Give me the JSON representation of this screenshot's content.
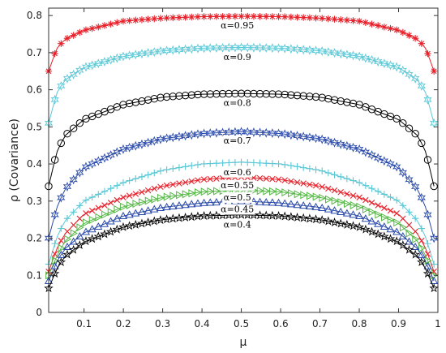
{
  "chart_data": {
    "type": "scatter",
    "title": "",
    "xlabel": "μ",
    "ylabel": "ρ  (Covariance)",
    "xlim": [
      0.01,
      1.0
    ],
    "ylim": [
      0,
      0.82
    ],
    "x_ticks": [
      0.1,
      0.2,
      0.3,
      0.4,
      0.5,
      0.6,
      0.7,
      0.8,
      0.9,
      1
    ],
    "x_tick_labels": [
      "0.1",
      "0.2",
      "0.3",
      "0.4",
      "0.5",
      "0.6",
      "0.7",
      "0.8",
      "0.9",
      "1"
    ],
    "y_ticks": [
      0,
      0.1,
      0.2,
      0.3,
      0.4,
      0.5,
      0.6,
      0.7,
      0.8
    ],
    "y_tick_labels": [
      "0",
      "0.1",
      "0.2",
      "0.3",
      "0.4",
      "0.5",
      "0.6",
      "0.7",
      "0.8"
    ],
    "grid": false,
    "series": [
      {
        "name": "α=0.95",
        "color": "#e8202a",
        "marker": "asterisk",
        "values": [
          {
            "x": 0.01,
            "y": 0.65
          },
          {
            "x": 0.03,
            "y": 0.71
          },
          {
            "x": 0.05,
            "y": 0.735
          },
          {
            "x": 0.1,
            "y": 0.76
          },
          {
            "x": 0.2,
            "y": 0.785
          },
          {
            "x": 0.3,
            "y": 0.793
          },
          {
            "x": 0.4,
            "y": 0.797
          },
          {
            "x": 0.5,
            "y": 0.798
          },
          {
            "x": 0.6,
            "y": 0.797
          },
          {
            "x": 0.7,
            "y": 0.793
          },
          {
            "x": 0.8,
            "y": 0.785
          },
          {
            "x": 0.9,
            "y": 0.76
          },
          {
            "x": 0.95,
            "y": 0.735
          },
          {
            "x": 0.97,
            "y": 0.71
          },
          {
            "x": 0.99,
            "y": 0.65
          }
        ]
      },
      {
        "name": "α=0.9",
        "color": "#5bc8d6",
        "marker": "hexagram",
        "values": [
          {
            "x": 0.01,
            "y": 0.51
          },
          {
            "x": 0.03,
            "y": 0.59
          },
          {
            "x": 0.05,
            "y": 0.625
          },
          {
            "x": 0.1,
            "y": 0.66
          },
          {
            "x": 0.2,
            "y": 0.69
          },
          {
            "x": 0.3,
            "y": 0.705
          },
          {
            "x": 0.4,
            "y": 0.712
          },
          {
            "x": 0.5,
            "y": 0.714
          },
          {
            "x": 0.6,
            "y": 0.712
          },
          {
            "x": 0.7,
            "y": 0.705
          },
          {
            "x": 0.8,
            "y": 0.69
          },
          {
            "x": 0.9,
            "y": 0.66
          },
          {
            "x": 0.95,
            "y": 0.625
          },
          {
            "x": 0.97,
            "y": 0.59
          },
          {
            "x": 0.99,
            "y": 0.51
          }
        ]
      },
      {
        "name": "α=0.8",
        "color": "#000000",
        "marker": "circle",
        "values": [
          {
            "x": 0.01,
            "y": 0.34
          },
          {
            "x": 0.03,
            "y": 0.43
          },
          {
            "x": 0.05,
            "y": 0.475
          },
          {
            "x": 0.1,
            "y": 0.52
          },
          {
            "x": 0.2,
            "y": 0.56
          },
          {
            "x": 0.3,
            "y": 0.58
          },
          {
            "x": 0.4,
            "y": 0.588
          },
          {
            "x": 0.5,
            "y": 0.59
          },
          {
            "x": 0.6,
            "y": 0.588
          },
          {
            "x": 0.7,
            "y": 0.58
          },
          {
            "x": 0.8,
            "y": 0.56
          },
          {
            "x": 0.9,
            "y": 0.52
          },
          {
            "x": 0.95,
            "y": 0.475
          },
          {
            "x": 0.97,
            "y": 0.43
          },
          {
            "x": 0.99,
            "y": 0.34
          }
        ]
      },
      {
        "name": "α=0.7",
        "color": "#2a4aaa",
        "marker": "hexagram",
        "values": [
          {
            "x": 0.01,
            "y": 0.2
          },
          {
            "x": 0.03,
            "y": 0.28
          },
          {
            "x": 0.05,
            "y": 0.33
          },
          {
            "x": 0.1,
            "y": 0.39
          },
          {
            "x": 0.2,
            "y": 0.44
          },
          {
            "x": 0.3,
            "y": 0.468
          },
          {
            "x": 0.4,
            "y": 0.482
          },
          {
            "x": 0.5,
            "y": 0.487
          },
          {
            "x": 0.6,
            "y": 0.482
          },
          {
            "x": 0.7,
            "y": 0.468
          },
          {
            "x": 0.8,
            "y": 0.44
          },
          {
            "x": 0.9,
            "y": 0.39
          },
          {
            "x": 0.95,
            "y": 0.33
          },
          {
            "x": 0.97,
            "y": 0.28
          },
          {
            "x": 0.99,
            "y": 0.2
          }
        ]
      },
      {
        "name": "α=0.6",
        "color": "#5bc8d6",
        "marker": "plus",
        "values": [
          {
            "x": 0.01,
            "y": 0.13
          },
          {
            "x": 0.03,
            "y": 0.2
          },
          {
            "x": 0.05,
            "y": 0.245
          },
          {
            "x": 0.1,
            "y": 0.3
          },
          {
            "x": 0.2,
            "y": 0.35
          },
          {
            "x": 0.3,
            "y": 0.383
          },
          {
            "x": 0.4,
            "y": 0.4
          },
          {
            "x": 0.5,
            "y": 0.405
          },
          {
            "x": 0.6,
            "y": 0.4
          },
          {
            "x": 0.7,
            "y": 0.383
          },
          {
            "x": 0.8,
            "y": 0.35
          },
          {
            "x": 0.9,
            "y": 0.3
          },
          {
            "x": 0.95,
            "y": 0.245
          },
          {
            "x": 0.97,
            "y": 0.2
          },
          {
            "x": 0.99,
            "y": 0.13
          }
        ]
      },
      {
        "name": "α=0.55",
        "color": "#e8202a",
        "marker": "x",
        "values": [
          {
            "x": 0.01,
            "y": 0.11
          },
          {
            "x": 0.03,
            "y": 0.17
          },
          {
            "x": 0.05,
            "y": 0.21
          },
          {
            "x": 0.1,
            "y": 0.265
          },
          {
            "x": 0.2,
            "y": 0.31
          },
          {
            "x": 0.3,
            "y": 0.34
          },
          {
            "x": 0.4,
            "y": 0.358
          },
          {
            "x": 0.5,
            "y": 0.365
          },
          {
            "x": 0.6,
            "y": 0.358
          },
          {
            "x": 0.7,
            "y": 0.34
          },
          {
            "x": 0.8,
            "y": 0.31
          },
          {
            "x": 0.9,
            "y": 0.265
          },
          {
            "x": 0.95,
            "y": 0.21
          },
          {
            "x": 0.97,
            "y": 0.17
          },
          {
            "x": 0.99,
            "y": 0.11
          }
        ]
      },
      {
        "name": "α=0.5",
        "color": "#55b845",
        "marker": "triangle-right",
        "values": [
          {
            "x": 0.01,
            "y": 0.1
          },
          {
            "x": 0.03,
            "y": 0.15
          },
          {
            "x": 0.05,
            "y": 0.19
          },
          {
            "x": 0.1,
            "y": 0.24
          },
          {
            "x": 0.2,
            "y": 0.285
          },
          {
            "x": 0.3,
            "y": 0.31
          },
          {
            "x": 0.4,
            "y": 0.325
          },
          {
            "x": 0.5,
            "y": 0.33
          },
          {
            "x": 0.6,
            "y": 0.325
          },
          {
            "x": 0.7,
            "y": 0.31
          },
          {
            "x": 0.8,
            "y": 0.285
          },
          {
            "x": 0.9,
            "y": 0.24
          },
          {
            "x": 0.95,
            "y": 0.19
          },
          {
            "x": 0.97,
            "y": 0.15
          },
          {
            "x": 0.99,
            "y": 0.1
          }
        ]
      },
      {
        "name": "α=0.45",
        "color": "#2a4aaa",
        "marker": "triangle-up",
        "values": [
          {
            "x": 0.01,
            "y": 0.085
          },
          {
            "x": 0.03,
            "y": 0.135
          },
          {
            "x": 0.05,
            "y": 0.17
          },
          {
            "x": 0.1,
            "y": 0.215
          },
          {
            "x": 0.2,
            "y": 0.26
          },
          {
            "x": 0.3,
            "y": 0.283
          },
          {
            "x": 0.4,
            "y": 0.295
          },
          {
            "x": 0.5,
            "y": 0.3
          },
          {
            "x": 0.6,
            "y": 0.295
          },
          {
            "x": 0.7,
            "y": 0.283
          },
          {
            "x": 0.8,
            "y": 0.26
          },
          {
            "x": 0.9,
            "y": 0.215
          },
          {
            "x": 0.95,
            "y": 0.17
          },
          {
            "x": 0.97,
            "y": 0.135
          },
          {
            "x": 0.99,
            "y": 0.085
          }
        ]
      },
      {
        "name": "α=0.4",
        "color": "#000000",
        "marker": "star",
        "values": [
          {
            "x": 0.01,
            "y": 0.065
          },
          {
            "x": 0.03,
            "y": 0.115
          },
          {
            "x": 0.05,
            "y": 0.15
          },
          {
            "x": 0.1,
            "y": 0.19
          },
          {
            "x": 0.2,
            "y": 0.23
          },
          {
            "x": 0.3,
            "y": 0.25
          },
          {
            "x": 0.4,
            "y": 0.26
          },
          {
            "x": 0.5,
            "y": 0.263
          },
          {
            "x": 0.6,
            "y": 0.26
          },
          {
            "x": 0.7,
            "y": 0.25
          },
          {
            "x": 0.8,
            "y": 0.23
          },
          {
            "x": 0.9,
            "y": 0.19
          },
          {
            "x": 0.95,
            "y": 0.15
          },
          {
            "x": 0.97,
            "y": 0.115
          },
          {
            "x": 0.99,
            "y": 0.065
          }
        ]
      }
    ],
    "annotations": [
      {
        "text": "α=0.95",
        "x": 0.49,
        "y": 0.765
      },
      {
        "text": "α=0.9",
        "x": 0.49,
        "y": 0.68
      },
      {
        "text": "α=0.8",
        "x": 0.49,
        "y": 0.557
      },
      {
        "text": "α=0.7",
        "x": 0.49,
        "y": 0.455
      },
      {
        "text": "α=0.6",
        "x": 0.49,
        "y": 0.37
      },
      {
        "text": "α=0.55",
        "x": 0.49,
        "y": 0.335
      },
      {
        "text": "α=0.5",
        "x": 0.49,
        "y": 0.302
      },
      {
        "text": "α=0.45",
        "x": 0.49,
        "y": 0.27
      },
      {
        "text": "α=0.4",
        "x": 0.49,
        "y": 0.228
      }
    ]
  }
}
